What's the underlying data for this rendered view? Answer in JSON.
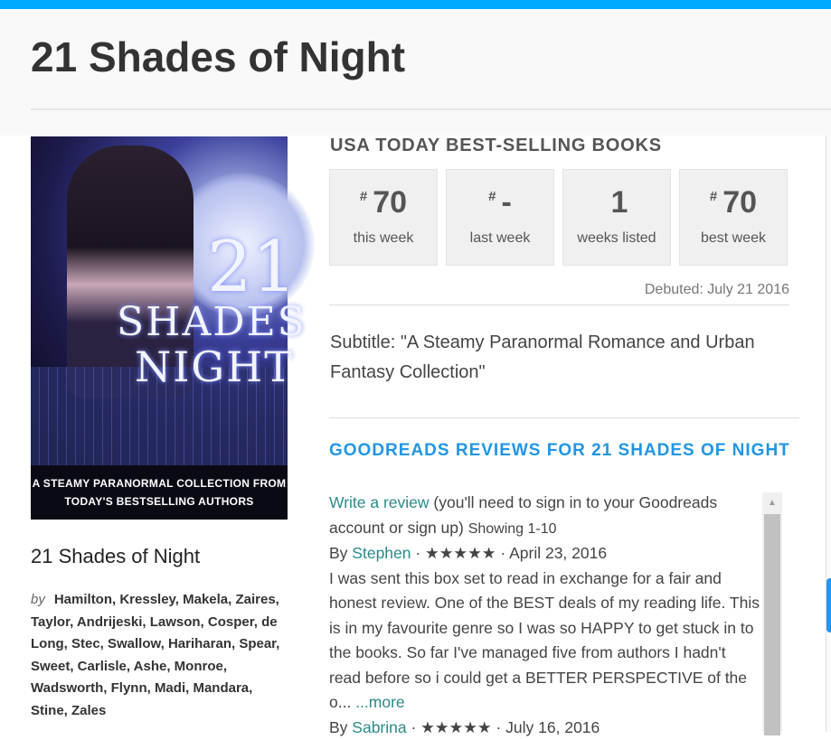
{
  "colors": {
    "top_bar": "#00aaff",
    "accent": "#2196e6",
    "link": "#2a8a8a"
  },
  "header": {
    "title": "21 Shades of Night"
  },
  "book": {
    "cover_lettering": {
      "number": "21",
      "shades": "SHADES",
      "night": "NIGHT",
      "tagline_1": "A STEAMY PARANORMAL COLLECTION FROM",
      "tagline_2": "TODAY'S BESTSELLING AUTHORS"
    },
    "title": "21 Shades of Night",
    "by_label": "by",
    "authors": "Hamilton, Kressley, Makela, Zaires, Taylor, Andrijeski, Lawson, Cosper, de Long, Stec, Swallow, Hariharan, Spear, Sweet, Carlisle, Ashe, Monroe, Wadsworth, Flynn, Madi, Mandara, Stine, Zales"
  },
  "usa_today": {
    "heading": "USA TODAY BEST-SELLING BOOKS",
    "stats": [
      {
        "prefix": "#",
        "value": "70",
        "label": "this week"
      },
      {
        "prefix": "#",
        "value": "-",
        "label": "last week"
      },
      {
        "prefix": "",
        "value": "1",
        "label": "weeks listed"
      },
      {
        "prefix": "#",
        "value": "70",
        "label": "best week"
      }
    ],
    "debuted": "Debuted: July 21 2016",
    "subtitle": "Subtitle: \"A Steamy Paranormal Romance and Urban Fantasy Collection\""
  },
  "goodreads": {
    "heading": "GOODREADS REVIEWS FOR 21 SHADES OF NIGHT",
    "write_review": "Write a review",
    "write_note": " (you'll need to sign in to your Goodreads account or sign up) ",
    "showing": "Showing 1-10",
    "reviews": [
      {
        "by": "By ",
        "author": "Stephen",
        "stars": " · ★★★★★ · ",
        "rating": 5,
        "date": "April 23, 2016",
        "text": "I was sent this box set to read in exchange for a fair and honest review. One of the BEST deals of my reading life. This is in my favourite genre so I was so HAPPY to get stuck in to the books. So far I've managed five from authors I hadn't read before so i could get a BETTER PERSPECTIVE of the o... ",
        "more": "...more"
      },
      {
        "by": "By ",
        "author": "Sabrina",
        "stars": " · ★★★★★ · ",
        "rating": 5,
        "date": "July 16, 2016"
      }
    ]
  }
}
